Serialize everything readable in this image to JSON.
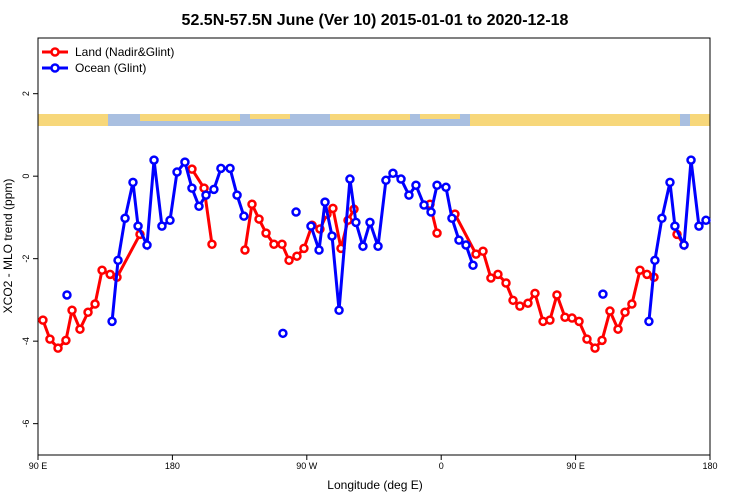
{
  "chart_data": {
    "type": "line",
    "title": "52.5N-57.5N June (Ver 10)   2015-01-01 to 2020-12-18",
    "x_label": "Longitude (deg E)",
    "y_label": "XCO2 - MLO trend (ppm)",
    "xlim": [
      90,
      540
    ],
    "xticks": [
      {
        "value": 90,
        "label": "90 E"
      },
      {
        "value": 180,
        "label": "180"
      },
      {
        "value": 270,
        "label": "90 W"
      },
      {
        "value": 360,
        "label": "0"
      },
      {
        "value": 450,
        "label": "90 E"
      },
      {
        "value": 540,
        "label": "180"
      }
    ],
    "ylim": [
      -6.76,
      3.35
    ],
    "yticks": [
      -6,
      -4,
      -2,
      0,
      2
    ],
    "legend": "top-left",
    "series": [
      {
        "name": "Land (Nadir&Glint)",
        "color": "#ff0000",
        "x": [
          93.3,
          98.0,
          103.4,
          108.7,
          112.8,
          118.1,
          123.5,
          128.2,
          132.9,
          138.3,
          142.9,
          158.3,
          null,
          193.1,
          201.2,
          206.5,
          null,
          228.6,
          233.3,
          238.0,
          242.7,
          248.0,
          253.4,
          258.1,
          263.4,
          268.1,
          273.5,
          278.8,
          283.5,
          287.5,
          292.9,
          297.6,
          301.6,
          null,
          352.5,
          357.2,
          null,
          369.2,
          383.3,
          388.0,
          393.3,
          398.0,
          403.4,
          408.1,
          412.7,
          418.1,
          422.8,
          428.2,
          432.8,
          437.5,
          442.9,
          447.6,
          452.3,
          457.6,
          463.0,
          467.7,
          473.0,
          478.4,
          483.1,
          487.7,
          493.1,
          497.8,
          502.5,
          null,
          517.9,
          522.6
        ],
        "values": [
          -3.49,
          -3.95,
          -4.17,
          -3.98,
          -3.25,
          -3.71,
          -3.3,
          -3.1,
          -2.28,
          -2.38,
          -2.45,
          -1.41,
          null,
          0.17,
          -0.29,
          -1.65,
          null,
          -1.79,
          -0.68,
          -1.04,
          -1.38,
          -1.65,
          -1.65,
          -2.04,
          -1.94,
          -1.75,
          -1.19,
          -1.28,
          -0.92,
          -0.78,
          -1.75,
          -1.07,
          -0.8,
          null,
          -0.68,
          -1.38,
          null,
          -0.92,
          -1.89,
          -1.82,
          -2.47,
          -2.38,
          -2.59,
          -3.01,
          -3.15,
          -3.08,
          -2.84,
          -3.52,
          -3.49,
          -2.88,
          -3.42,
          -3.44,
          -3.52,
          -3.95,
          -4.17,
          -3.98,
          -3.27,
          -3.71,
          -3.3,
          -3.1,
          -2.28,
          -2.38,
          -2.45,
          null,
          -1.41,
          -1.67
        ]
      },
      {
        "name": "Ocean (Glint)",
        "color": "#0000ff",
        "x": [
          109.4,
          null,
          139.6,
          143.6,
          148.3,
          153.6,
          157.0,
          163.0,
          167.7,
          173.0,
          178.4,
          183.1,
          188.4,
          193.1,
          197.8,
          202.5,
          207.8,
          212.5,
          218.6,
          223.3,
          227.9,
          null,
          254.0,
          null,
          262.8,
          null,
          272.8,
          278.2,
          282.2,
          286.9,
          291.6,
          298.9,
          302.9,
          307.6,
          312.3,
          317.7,
          323.0,
          327.7,
          333.1,
          338.4,
          343.1,
          348.5,
          353.2,
          357.2,
          363.2,
          367.2,
          371.9,
          376.6,
          381.3,
          null,
          468.3,
          null,
          499.1,
          503.1,
          507.8,
          513.2,
          516.5,
          522.6,
          527.3,
          532.6,
          537.3
        ],
        "values": [
          -2.88,
          null,
          -3.52,
          -2.04,
          -1.02,
          -0.15,
          -1.21,
          -1.67,
          0.39,
          -1.21,
          -1.07,
          0.1,
          0.34,
          -0.29,
          -0.73,
          -0.46,
          -0.32,
          0.19,
          0.19,
          -0.46,
          -0.97,
          null,
          -3.81,
          null,
          -0.87,
          null,
          -1.21,
          -1.79,
          -0.63,
          -1.45,
          -3.25,
          -0.07,
          -1.12,
          -1.7,
          -1.12,
          -1.7,
          -0.1,
          0.07,
          -0.07,
          -0.46,
          -0.22,
          -0.7,
          -0.87,
          -0.22,
          -0.27,
          -1.02,
          -1.55,
          -1.67,
          -2.16,
          null,
          -2.86,
          null,
          -3.52,
          -2.04,
          -1.02,
          -0.15,
          -1.21,
          -1.67,
          0.39,
          -1.21,
          -1.07
        ]
      }
    ]
  }
}
